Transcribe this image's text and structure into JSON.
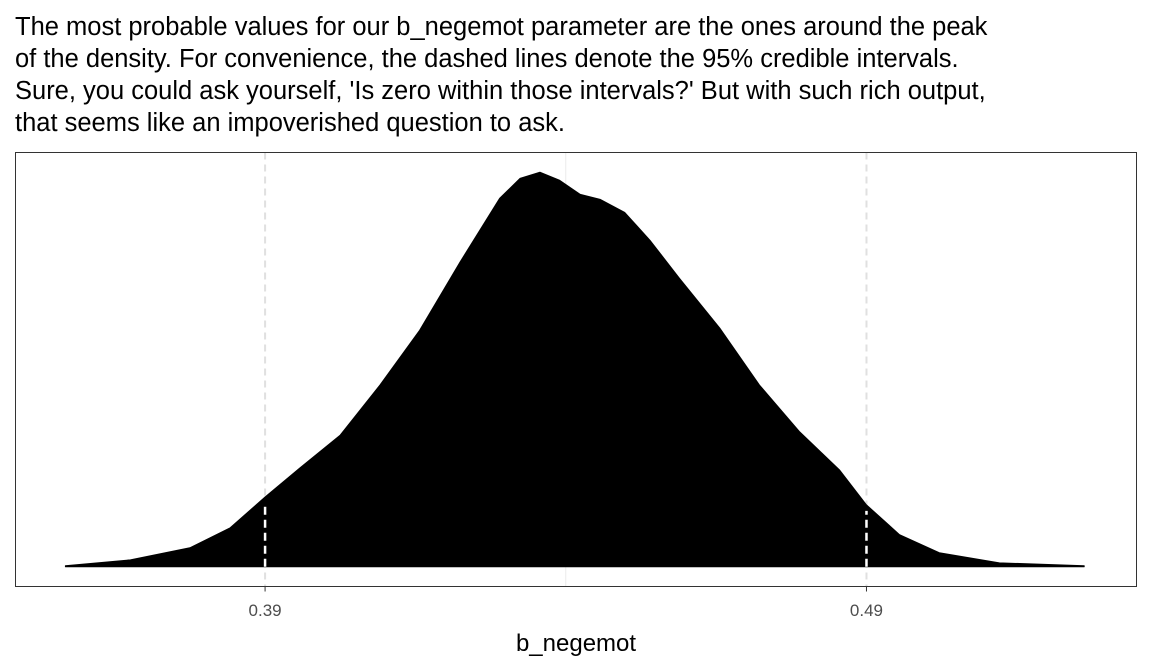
{
  "caption": [
    "The most probable values for our b_negemot parameter are the ones around the peak",
    "of the density. For convenience, the dashed lines denote the 95% credible intervals.",
    "Sure, you could ask yourself, 'Is zero within those intervals?' But with such rich output,",
    "that seems like an impoverished question to ask."
  ],
  "chart_data": {
    "type": "density",
    "x_label": "b_negemot",
    "color": "#000000",
    "x": [
      0.3568,
      0.3676,
      0.3775,
      0.3842,
      0.39,
      0.3958,
      0.4025,
      0.4091,
      0.4157,
      0.4224,
      0.429,
      0.4324,
      0.4357,
      0.439,
      0.4424,
      0.4457,
      0.4498,
      0.454,
      0.4589,
      0.4656,
      0.4722,
      0.4789,
      0.4855,
      0.49,
      0.4955,
      0.5021,
      0.5121,
      0.5262
    ],
    "values": [
      0.04,
      0.28,
      0.77,
      1.58,
      2.83,
      4.01,
      5.34,
      7.37,
      9.59,
      12.35,
      14.94,
      15.75,
      16.0,
      15.67,
      15.1,
      14.9,
      14.37,
      13.24,
      11.7,
      9.68,
      7.37,
      5.47,
      3.93,
      2.51,
      1.3,
      0.57,
      0.16,
      0.04
    ],
    "xlim": [
      0.3485,
      0.5349
    ],
    "ylim": [
      -0.8,
      16.8
    ],
    "xticks": [
      0.39,
      0.49
    ],
    "xminor": [
      0.44
    ],
    "grid": true
  }
}
